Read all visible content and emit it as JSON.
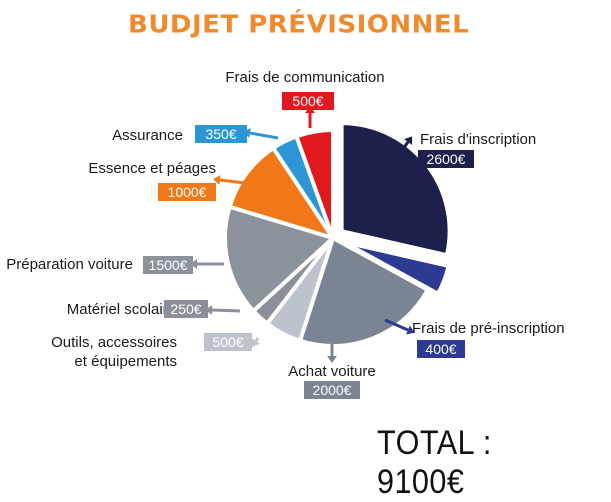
{
  "header": {
    "title": "BUDJET PRÉVISIONNEL"
  },
  "footer": {
    "total": "TOTAL : 9100€"
  },
  "chart_data": {
    "type": "pie",
    "title": "BUDJET PRÉVISIONNEL",
    "unit": "€",
    "slices": [
      {
        "label": "Frais d'inscription",
        "value": 2600,
        "value_label": "2600€",
        "color": "#1e1f4b",
        "exploded": true
      },
      {
        "label": "Frais de pré-inscription",
        "value": 400,
        "value_label": "400€",
        "color": "#2d3a92",
        "exploded": true
      },
      {
        "label": "Achat voiture",
        "value": 2000,
        "value_label": "2000€",
        "color": "#7a8492",
        "exploded": false
      },
      {
        "label": "Outils, accessoires\net équipements",
        "value": 500,
        "value_label": "500€",
        "color": "#bcc3cc",
        "exploded": false
      },
      {
        "label": "Matériel scolaire",
        "value": 250,
        "value_label": "250€",
        "color": "#8c8f99",
        "exploded": false
      },
      {
        "label": "Préparation voiture",
        "value": 1500,
        "value_label": "1500€",
        "color": "#8b929c",
        "exploded": false
      },
      {
        "label": "Essence et péages",
        "value": 1000,
        "value_label": "1000€",
        "color": "#f07818",
        "exploded": false
      },
      {
        "label": "Assurance",
        "value": 350,
        "value_label": "350€",
        "color": "#2c95d6",
        "exploded": false
      },
      {
        "label": "Frais de communication",
        "value": 500,
        "value_label": "500€",
        "color": "#e0191f",
        "exploded": false
      }
    ]
  }
}
